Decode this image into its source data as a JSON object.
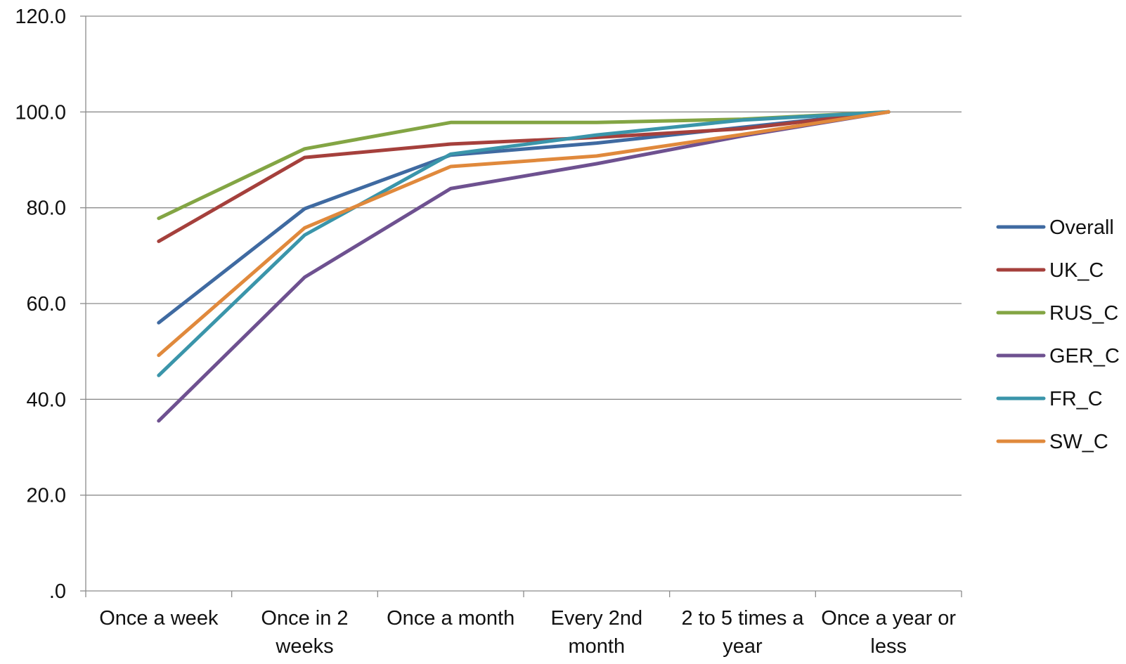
{
  "chart_data": {
    "type": "line",
    "title": "",
    "xlabel": "",
    "ylabel": "",
    "categories": [
      [
        "Once a week"
      ],
      [
        "Once in 2",
        "weeks"
      ],
      [
        "Once a month"
      ],
      [
        "Every 2nd",
        "month"
      ],
      [
        "2 to 5 times a",
        "year"
      ],
      [
        "Once a year or",
        "less"
      ]
    ],
    "ylim": [
      0,
      120
    ],
    "yticks": [
      0,
      20,
      40,
      60,
      80,
      100,
      120
    ],
    "ytick_labels": [
      ".0",
      "20.0",
      "40.0",
      "60.0",
      "80.0",
      "100.0",
      "120.0"
    ],
    "grid": true,
    "legend_position": "right",
    "series": [
      {
        "name": "Overall",
        "color": "#3f6aa1",
        "values": [
          56.0,
          79.8,
          91.0,
          93.5,
          96.8,
          100.0
        ]
      },
      {
        "name": "UK_C",
        "color": "#a5403c",
        "values": [
          73.0,
          90.5,
          93.3,
          94.7,
          96.5,
          100.0
        ]
      },
      {
        "name": "RUS_C",
        "color": "#83a544",
        "values": [
          77.8,
          92.3,
          97.8,
          97.8,
          98.5,
          100.0
        ]
      },
      {
        "name": "GER_C",
        "color": "#6e5190",
        "values": [
          35.5,
          65.5,
          84.0,
          89.2,
          95.0,
          100.0
        ]
      },
      {
        "name": "FR_C",
        "color": "#3a95aa",
        "values": [
          45.0,
          74.3,
          91.2,
          95.2,
          98.3,
          100.0
        ]
      },
      {
        "name": "SW_C",
        "color": "#e0893c",
        "values": [
          49.2,
          75.8,
          88.6,
          90.8,
          95.3,
          100.0
        ]
      }
    ]
  }
}
